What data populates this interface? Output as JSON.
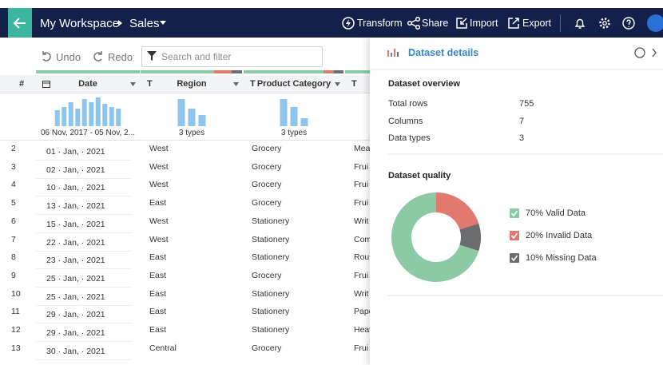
{
  "header": {
    "workspace": "My Workspace",
    "dataset": "Sales",
    "actions": [
      "Transform",
      "Share",
      "Import",
      "Export"
    ]
  },
  "toolbar": {
    "undo": "Undo",
    "redo": "Redo",
    "search_placeholder": "Search and filter"
  },
  "table": {
    "row_number_header": "#",
    "columns": [
      {
        "name": "Date",
        "histogram": [
          20,
          24,
          30,
          22,
          34,
          30,
          36,
          28,
          24,
          22
        ],
        "summary": "06 Nov, 2017 - 05 Nov, 2..."
      },
      {
        "type_icon": "T",
        "name": "Region",
        "histogram": [
          34,
          22,
          14
        ],
        "summary": "3 types"
      },
      {
        "type_icon": "T",
        "name": "Product Category",
        "histogram": [
          34,
          24,
          10
        ],
        "summary": "3 types"
      },
      {
        "type_icon": "T"
      }
    ],
    "rows": [
      [
        2,
        "01 · Jan, · 2021",
        "West",
        "Grocery",
        "Mea"
      ],
      [
        3,
        "02 · Jan, · 2021",
        "West",
        "Grocery",
        "Frui"
      ],
      [
        4,
        "10 · Jan, · 2021",
        "West",
        "Grocery",
        "Frui"
      ],
      [
        5,
        "13 · Jan, · 2021",
        "East",
        "Grocery",
        "Frui"
      ],
      [
        6,
        "15 · Jan, · 2021",
        "West",
        "Stationery",
        "Writ"
      ],
      [
        7,
        "22 · Jan, · 2021",
        "West",
        "Stationery",
        "Com"
      ],
      [
        8,
        "23 · Jan, · 2021",
        "East",
        "Stationery",
        "Rour"
      ],
      [
        9,
        "25 · Jan, · 2021",
        "East",
        "Grocery",
        "Frui"
      ],
      [
        10,
        "25 · Jan, · 2021",
        "East",
        "Stationery",
        "Writ"
      ],
      [
        11,
        "29 · Jan, · 2021",
        "East",
        "Stationery",
        "Pape"
      ],
      [
        12,
        "29 · Jan, · 2021",
        "East",
        "Stationery",
        "Heav"
      ],
      [
        13,
        "30 · Jan, · 2021",
        "Central",
        "Grocery",
        "Frui"
      ]
    ]
  },
  "panel": {
    "title": "Dataset details",
    "overview": {
      "title": "Dataset overview",
      "items": [
        {
          "label": "Total rows",
          "value": 755
        },
        {
          "label": "Columns",
          "value": 7
        },
        {
          "label": "Data types",
          "value": 3
        }
      ]
    },
    "quality": {
      "title": "Dataset quality",
      "segments": [
        {
          "value": 70,
          "label": "70% Valid Data",
          "color": "#8ccaa6"
        },
        {
          "value": 20,
          "label": "20% Invalid Data",
          "color": "#e2796f"
        },
        {
          "value": 10,
          "label": "10% Missing Data",
          "color": "#6b6c6e"
        }
      ]
    }
  }
}
